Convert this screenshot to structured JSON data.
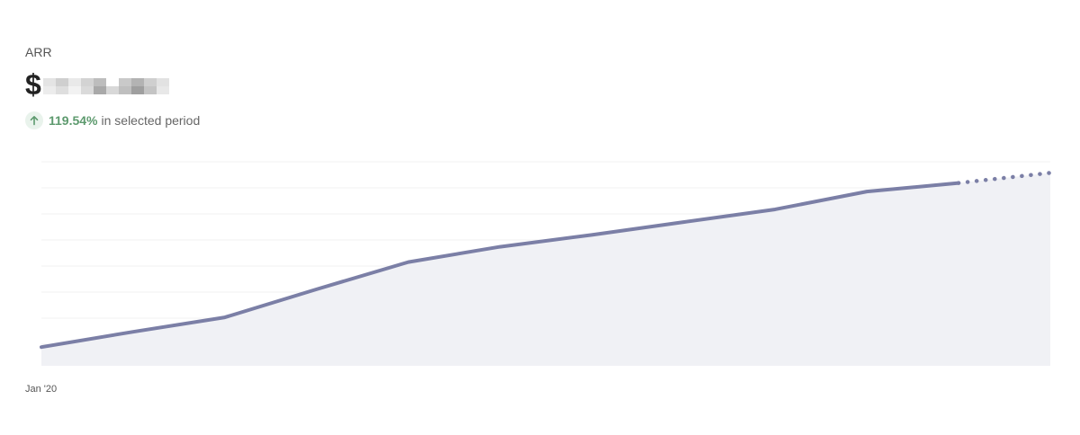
{
  "metric": {
    "label": "ARR",
    "currency_symbol": "$",
    "value_redacted": true
  },
  "change": {
    "direction": "up",
    "icon": "arrow-up-icon",
    "value": "119.54%",
    "suffix": "in selected period",
    "color": "#5d9a6e"
  },
  "chart_data": {
    "type": "area",
    "x": [
      0,
      1,
      2,
      3,
      4,
      5,
      6,
      7,
      8,
      9,
      10,
      11
    ],
    "x_tick_labels": [
      "Jan '20"
    ],
    "series": [
      {
        "style": "solid",
        "color": "#7b7fa6",
        "values": [
          100,
          118,
          135,
          168,
          200,
          218,
          232,
          247,
          262,
          283,
          293,
          null
        ]
      },
      {
        "style": "dotted",
        "color": "#7b7fa6",
        "values": [
          null,
          null,
          null,
          null,
          null,
          null,
          null,
          null,
          null,
          null,
          293,
          305
        ]
      }
    ],
    "fill_color": "#f0f1f5",
    "ylim": [
      78,
      318
    ],
    "grid": "horizontal",
    "legend": "none"
  }
}
